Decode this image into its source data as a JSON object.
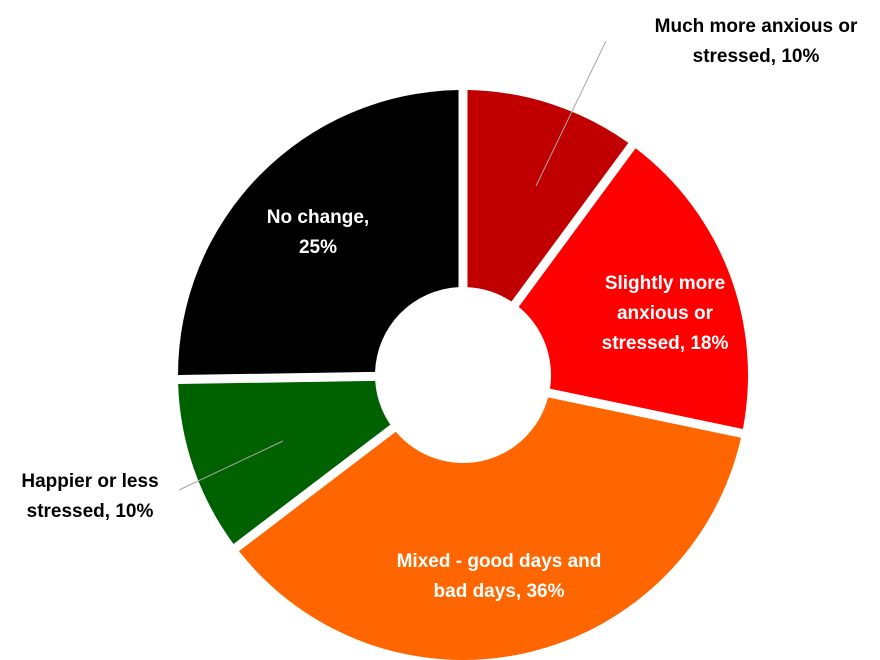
{
  "chart_data": {
    "type": "pie",
    "style": "exploded-donut",
    "legend": "none",
    "slices": [
      {
        "label_lines": [
          "Much more anxious or",
          "stressed, 10%"
        ],
        "value": 10,
        "color": "#C00000",
        "label_color": "#000000",
        "placement": "outside-top-right"
      },
      {
        "label_lines": [
          "Slightly more",
          "anxious or",
          "stressed, 18%"
        ],
        "value": 18,
        "color": "#FF0000",
        "label_color": "#ffffff",
        "placement": "inside"
      },
      {
        "label_lines": [
          "Mixed - good days and",
          "bad days, 36%"
        ],
        "value": 36,
        "color": "#FF6600",
        "label_color": "#ffffff",
        "placement": "inside"
      },
      {
        "label_lines": [
          "Happier or less",
          "stressed, 10%"
        ],
        "value": 10,
        "color": "#006100",
        "label_color": "#000000",
        "placement": "outside-left"
      },
      {
        "label_lines": [
          "No change,",
          "25%"
        ],
        "value": 25,
        "color": "#000000",
        "label_color": "#ffffff",
        "placement": "inside"
      }
    ]
  }
}
